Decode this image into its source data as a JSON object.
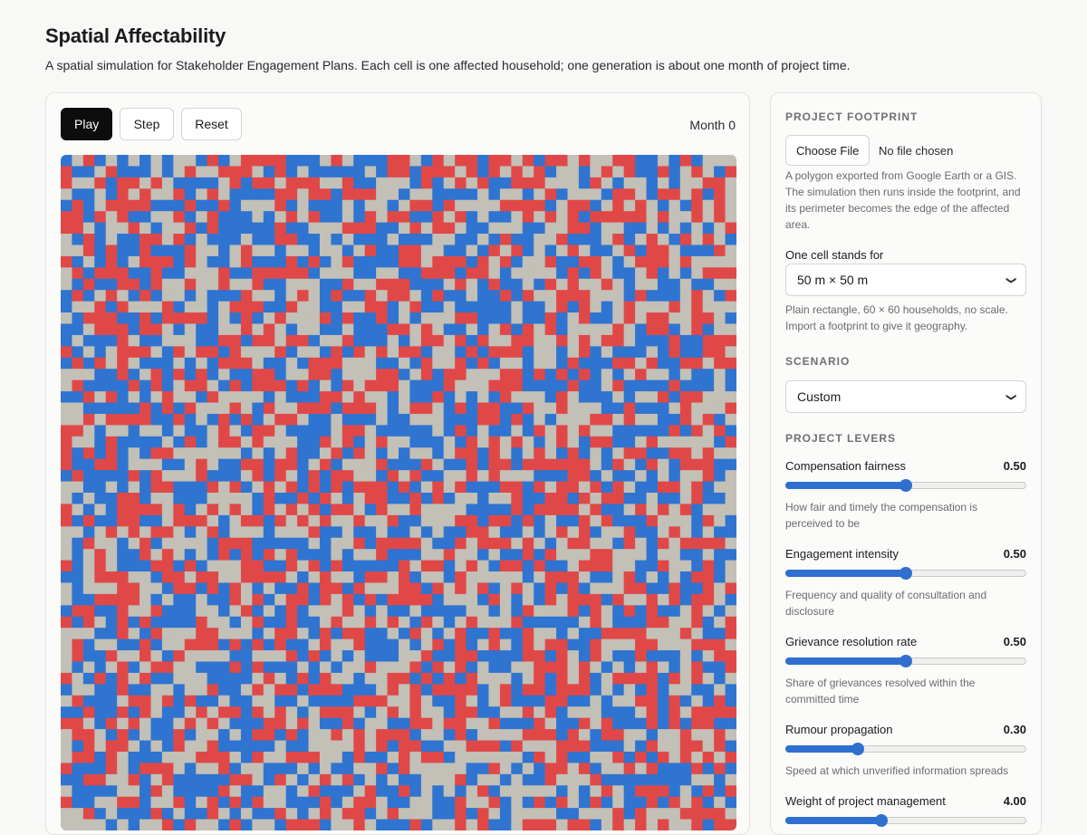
{
  "app": {
    "title": "Spatial Affectability",
    "subtitle": "A spatial simulation for Stakeholder Engagement Plans. Each cell is one affected household; one generation is about one month of project time."
  },
  "controls": {
    "play_label": "Play",
    "step_label": "Step",
    "reset_label": "Reset",
    "month_label": "Month 0"
  },
  "grid": {
    "colors": {
      "blue": "#2f74d0",
      "red": "#e04848",
      "gray": "#c2c0b7"
    }
  },
  "footprint": {
    "heading": "PROJECT FOOTPRINT",
    "file_button": "Choose File",
    "file_status": "No file chosen",
    "help": "A polygon exported from Google Earth or a GIS. The simulation then runs inside the footprint, and its perimeter becomes the edge of the affected area.",
    "cell_label": "One cell stands for",
    "cell_value": "50 m × 50 m",
    "cell_help": "Plain rectangle, 60 × 60 households, no scale. Import a footprint to give it geography."
  },
  "scenario": {
    "heading": "SCENARIO",
    "value": "Custom"
  },
  "levers": {
    "heading": "PROJECT LEVERS",
    "items": [
      {
        "label": "Compensation fairness",
        "value": "0.50",
        "level": 0.5,
        "help": "How fair and timely the compensation is perceived to be"
      },
      {
        "label": "Engagement intensity",
        "value": "0.50",
        "level": 0.5,
        "help": "Frequency and quality of consultation and disclosure"
      },
      {
        "label": "Grievance resolution rate",
        "value": "0.50",
        "level": 0.5,
        "help": "Share of grievances resolved within the committed time"
      },
      {
        "label": "Rumour propagation",
        "value": "0.30",
        "level": 0.3,
        "help": "Speed at which unverified information spreads"
      },
      {
        "label": "Weight of project management",
        "value": "4.00",
        "level": 0.4,
        "help": ""
      }
    ]
  },
  "accent_color": "#2f6fd0"
}
